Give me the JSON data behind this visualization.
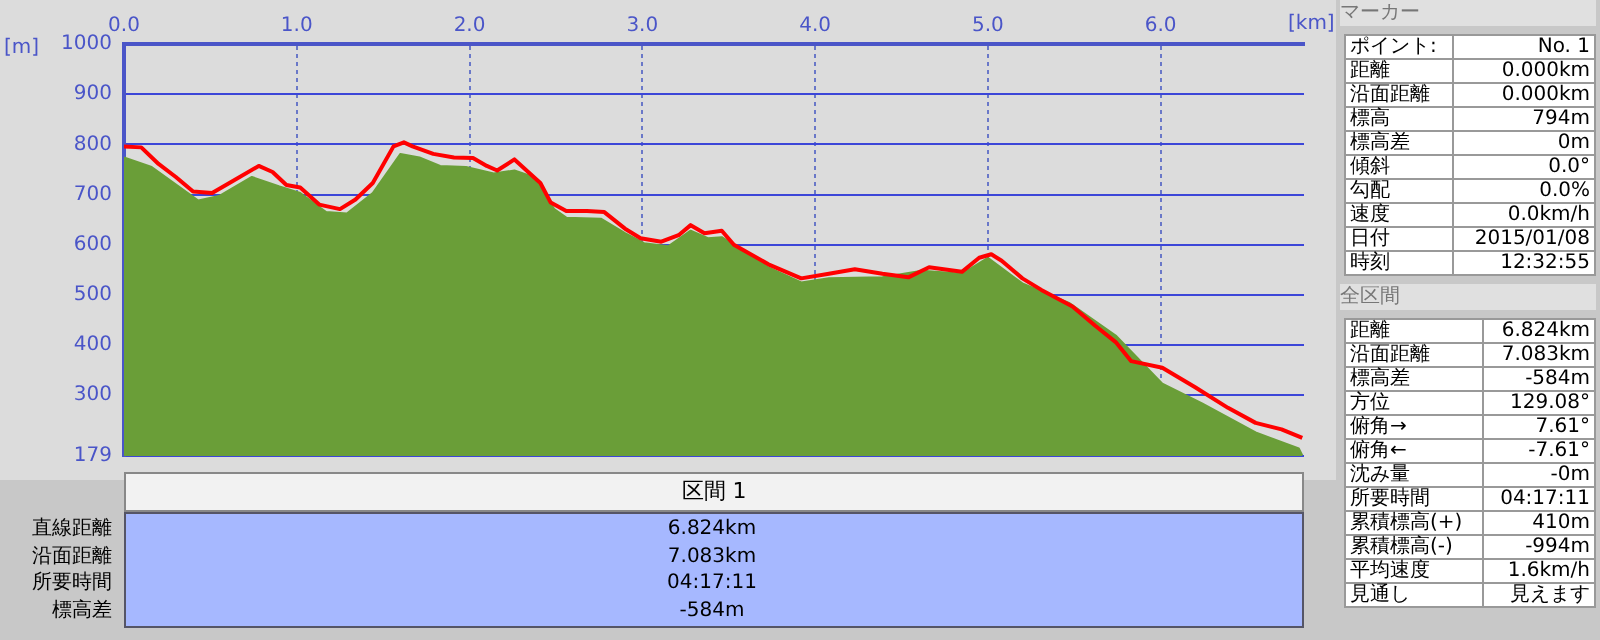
{
  "chart_data": {
    "type": "area",
    "xlabel": "[km]",
    "ylabel": "[m]",
    "xlim": [
      0,
      6.83
    ],
    "xticks": [
      {
        "value": 0,
        "label": "0.0"
      },
      {
        "value": 1,
        "label": "1.0"
      },
      {
        "value": 2,
        "label": "2.0"
      },
      {
        "value": 3,
        "label": "3.0"
      },
      {
        "value": 4,
        "label": "4.0"
      },
      {
        "value": 5,
        "label": "5.0"
      },
      {
        "value": 6,
        "label": "6.0"
      }
    ],
    "ylim": [
      179,
      1000
    ],
    "yticks": [
      179,
      300,
      400,
      500,
      600,
      700,
      800,
      900,
      1000
    ],
    "grid": true,
    "legend": false,
    "marker": "none",
    "series": [
      {
        "type": "area",
        "color": "#6a9e38",
        "x": [
          0,
          0.16,
          0.43,
          0.55,
          0.74,
          0.9,
          1.02,
          1.17,
          1.29,
          1.44,
          1.6,
          1.71,
          1.83,
          1.98,
          2.14,
          2.26,
          2.37,
          2.49,
          2.56,
          2.76,
          2.9,
          3.01,
          3.15,
          3.28,
          3.38,
          3.46,
          3.73,
          3.92,
          4.08,
          4.39,
          4.62,
          4.85,
          5.0,
          5.2,
          5.47,
          5.74,
          6.01,
          6.24,
          6.55,
          6.8,
          6.82
        ],
        "values": [
          774,
          755,
          688,
          697,
          735,
          716,
          703,
          665,
          662,
          703,
          781,
          774,
          757,
          755,
          742,
          748,
          735,
          671,
          654,
          652,
          623,
          603,
          597,
          628,
          613,
          615,
          555,
          525,
          533,
          535,
          548,
          542,
          574,
          523,
          484,
          419,
          323,
          284,
          226,
          194,
          180
        ]
      },
      {
        "type": "line",
        "color": "#ff0000",
        "x": [
          0,
          0.1,
          0.2,
          0.3,
          0.4,
          0.51,
          0.61,
          0.78,
          0.86,
          0.94,
          1.02,
          1.13,
          1.25,
          1.34,
          1.44,
          1.56,
          1.62,
          1.67,
          1.79,
          1.91,
          2.02,
          2.1,
          2.16,
          2.26,
          2.33,
          2.41,
          2.47,
          2.56,
          2.68,
          2.78,
          2.9,
          2.99,
          3.11,
          3.21,
          3.28,
          3.36,
          3.46,
          3.53,
          3.73,
          3.92,
          4.08,
          4.23,
          4.39,
          4.54,
          4.66,
          4.85,
          4.95,
          5.02,
          5.08,
          5.2,
          5.31,
          5.49,
          5.62,
          5.74,
          5.83,
          6.01,
          6.2,
          6.39,
          6.55,
          6.7,
          6.82
        ],
        "values": [
          796,
          794,
          761,
          735,
          706,
          703,
          723,
          757,
          745,
          719,
          714,
          680,
          671,
          690,
          723,
          796,
          804,
          796,
          781,
          774,
          773,
          757,
          748,
          770,
          748,
          723,
          684,
          667,
          667,
          665,
          632,
          613,
          606,
          619,
          639,
          623,
          628,
          600,
          561,
          533,
          542,
          551,
          542,
          535,
          555,
          546,
          574,
          581,
          568,
          533,
          510,
          477,
          439,
          406,
          368,
          355,
          316,
          275,
          245,
          232,
          215
        ]
      }
    ],
    "annotations": [
      "マーカー",
      "ポイント:",
      "No. 1",
      "距離",
      "0.000km",
      "沿面距離",
      "0.000km",
      "標高",
      "794m",
      "標高差",
      "0m",
      "傾斜",
      "0.0°",
      "勾配",
      "0.0%",
      "速度",
      "0.0km/h",
      "日付",
      "2015/01/08",
      "時刻",
      "12:32:55",
      "全区間",
      "距離",
      "6.824km",
      "沿面距離",
      "7.083km",
      "標高差",
      "-584m",
      "方位",
      "129.08°",
      "俯角→",
      "7.61°",
      "俯角←",
      "-7.61°",
      "沈み量",
      "-0m",
      "所要時間",
      "04:17:11",
      "累積標高(+)",
      "410m",
      "累積標高(-)",
      "-994m",
      "平均速度",
      "1.6km/h",
      "見通し",
      "見えます",
      "区間 1",
      "直線距離",
      "6.824km",
      "沿面距離",
      "7.083km",
      "所要時間",
      "04:17:11",
      "標高差",
      "-584m"
    ]
  }
}
